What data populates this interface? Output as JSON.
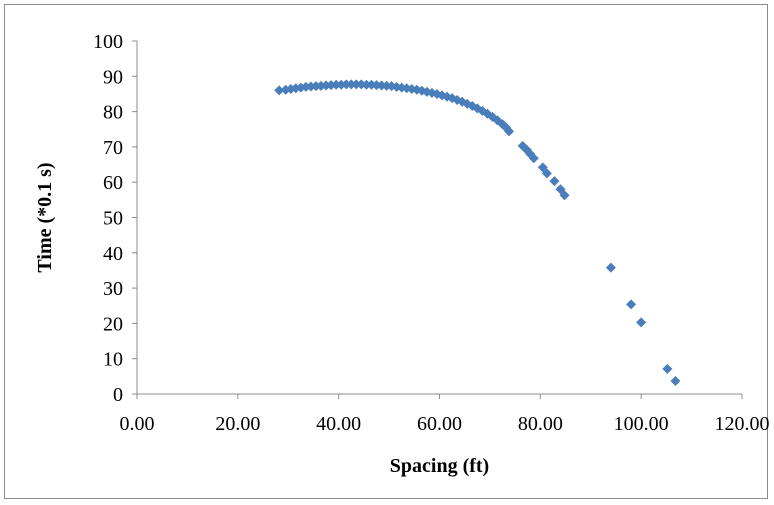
{
  "chart_data": {
    "type": "scatter",
    "title": "",
    "xlabel": "Spacing (ft)",
    "ylabel": "Time (*0.1 s)",
    "xlim": [
      0,
      120
    ],
    "ylim": [
      0,
      100
    ],
    "x_ticks": [
      "0.00",
      "20.00",
      "40.00",
      "60.00",
      "80.00",
      "100.00",
      "120.00"
    ],
    "y_ticks": [
      "0",
      "10",
      "20",
      "30",
      "40",
      "50",
      "60",
      "70",
      "80",
      "90",
      "100"
    ],
    "grid": false,
    "legend": "none",
    "marker": "diamond",
    "color": "#4a7ebb",
    "series": [
      {
        "points": [
          [
            28.2,
            86.0
          ],
          [
            29.5,
            86.2
          ],
          [
            30.5,
            86.4
          ],
          [
            31.5,
            86.6
          ],
          [
            32.5,
            86.8
          ],
          [
            33.5,
            87.0
          ],
          [
            34.5,
            87.1
          ],
          [
            35.5,
            87.2
          ],
          [
            36.5,
            87.3
          ],
          [
            37.5,
            87.4
          ],
          [
            38.5,
            87.5
          ],
          [
            39.5,
            87.6
          ],
          [
            40.5,
            87.6
          ],
          [
            41.5,
            87.7
          ],
          [
            42.5,
            87.7
          ],
          [
            43.5,
            87.7
          ],
          [
            44.5,
            87.7
          ],
          [
            45.5,
            87.6
          ],
          [
            46.5,
            87.6
          ],
          [
            47.5,
            87.5
          ],
          [
            48.5,
            87.4
          ],
          [
            49.5,
            87.3
          ],
          [
            50.5,
            87.2
          ],
          [
            51.5,
            87.0
          ],
          [
            52.5,
            86.8
          ],
          [
            53.5,
            86.6
          ],
          [
            54.5,
            86.4
          ],
          [
            55.5,
            86.2
          ],
          [
            56.5,
            85.9
          ],
          [
            57.5,
            85.6
          ],
          [
            58.5,
            85.3
          ],
          [
            59.5,
            85.0
          ],
          [
            60.5,
            84.6
          ],
          [
            61.5,
            84.2
          ],
          [
            62.5,
            83.8
          ],
          [
            63.5,
            83.3
          ],
          [
            64.5,
            82.8
          ],
          [
            65.5,
            82.2
          ],
          [
            66.5,
            81.6
          ],
          [
            67.5,
            80.9
          ],
          [
            68.5,
            80.2
          ],
          [
            69.5,
            79.4
          ],
          [
            70.5,
            78.5
          ],
          [
            71.5,
            77.5
          ],
          [
            72.5,
            76.4
          ],
          [
            73.2,
            75.5
          ],
          [
            73.8,
            74.4
          ],
          [
            76.5,
            70.3
          ],
          [
            77.3,
            69.2
          ],
          [
            78.0,
            68.0
          ],
          [
            78.7,
            66.8
          ],
          [
            80.5,
            64.2
          ],
          [
            81.3,
            62.5
          ],
          [
            82.8,
            60.3
          ],
          [
            84.0,
            58.0
          ],
          [
            84.8,
            56.3
          ],
          [
            94.0,
            35.8
          ],
          [
            98.0,
            25.4
          ],
          [
            100.0,
            20.3
          ],
          [
            105.2,
            7.1
          ],
          [
            106.8,
            3.7
          ]
        ]
      }
    ]
  }
}
